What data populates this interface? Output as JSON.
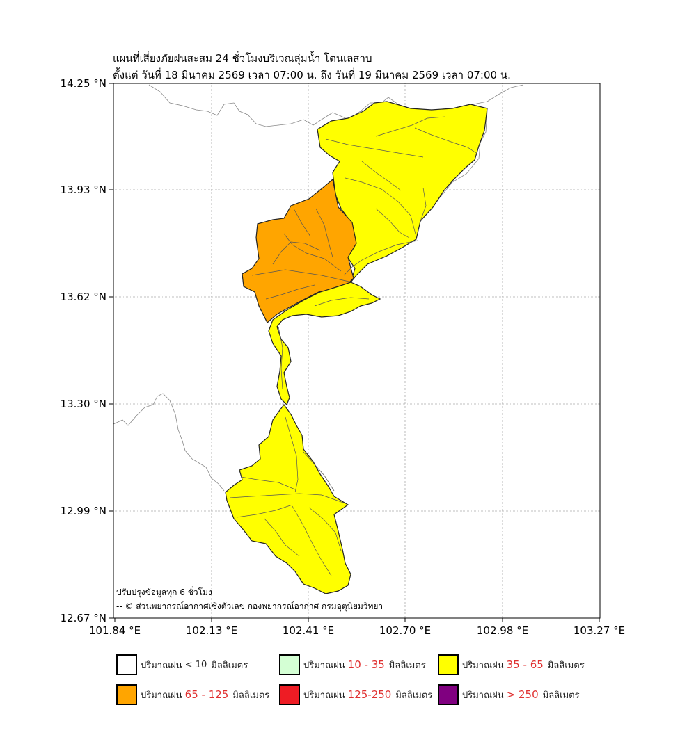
{
  "map": {
    "title_line1": "แผนที่เสี่ยงภัยฝนสะสม 24 ชั่วโมงบริเวณลุ่มน้ำ โตนเลสาบ",
    "title_line2": "ตั้งแต่ วันที่ 18 มีนาคม 2569 เวลา 07:00 น. ถึง วันที่ 19 มีนาคม 2569 เวลา 07:00 น.",
    "lat_labels": [
      "14.25 °N",
      "13.93 °N",
      "13.62 °N",
      "13.30 °N",
      "12.99 °N",
      "12.67 °N"
    ],
    "lon_labels": [
      "101.84 °E",
      "102.13 °E",
      "102.41 °E",
      "102.70 °E",
      "102.98 °E",
      "103.27 °E"
    ],
    "note_update": "ปรับปรุงข้อมูลทุก 6 ชั่วโมง",
    "note_credit": "-- © ส่วนพยากรณ์อากาศเชิงตัวเลข กองพยากรณ์อากาศ กรมอุตุนิยมวิทยา",
    "regions": [
      {
        "name": "north-subbasin",
        "category": "35 - 65",
        "color": "#ffff00"
      },
      {
        "name": "west-subbasin",
        "category": "65 - 125",
        "color": "#ffa500"
      },
      {
        "name": "corridor-subbasin",
        "category": "35 - 65",
        "color": "#ffff00"
      },
      {
        "name": "south-subbasin",
        "category": "35 - 65",
        "color": "#ffff00"
      }
    ]
  },
  "legend": {
    "prefix": "ปริมาณฝน",
    "unit": "มิลลิเมตร",
    "items": [
      {
        "range": "< 10",
        "color": "#ffffff"
      },
      {
        "range": "10 - 35",
        "color": "#d4ffd4"
      },
      {
        "range": "35 - 65",
        "color": "#ffff00"
      },
      {
        "range": "65 - 125",
        "color": "#ffa500"
      },
      {
        "range": "125-250",
        "color": "#ee1c24"
      },
      {
        "range": "> 250",
        "color": "#800080"
      }
    ]
  }
}
